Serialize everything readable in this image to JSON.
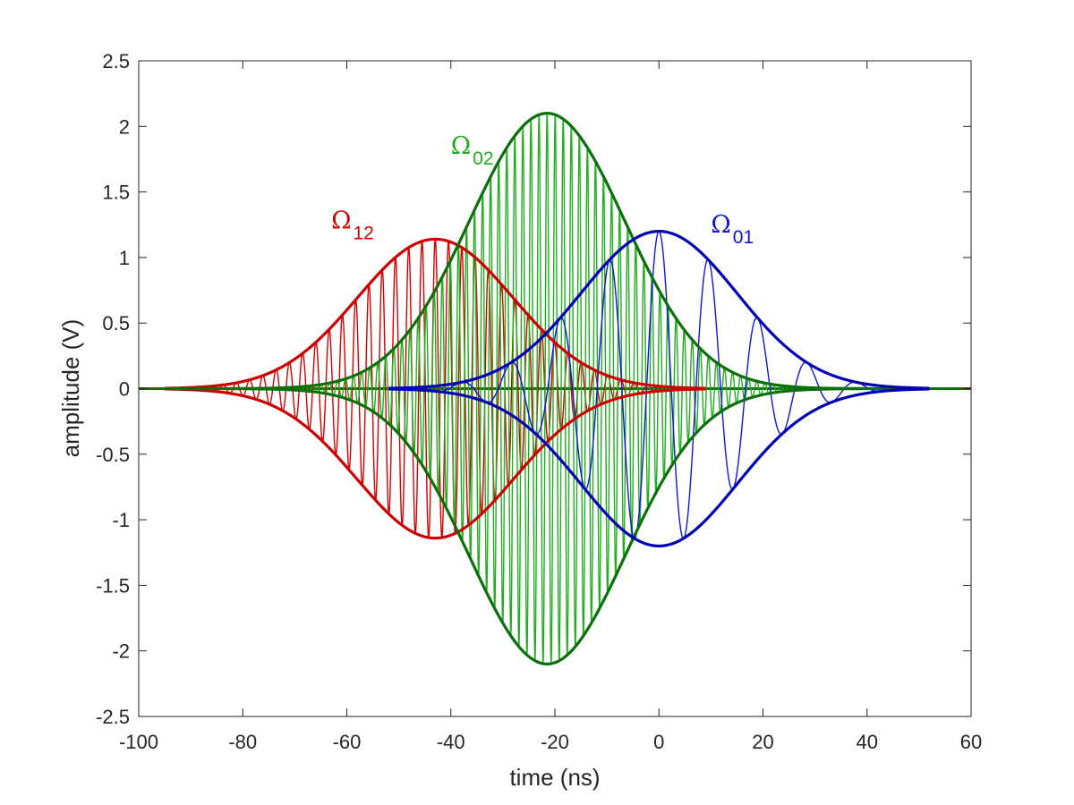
{
  "chart_data": {
    "type": "line",
    "xlabel": "time (ns)",
    "ylabel": "amplitude (V)",
    "xlim": [
      -100,
      60
    ],
    "ylim": [
      -2.5,
      2.5
    ],
    "xticks": [
      -100,
      -80,
      -60,
      -40,
      -20,
      0,
      20,
      40,
      60
    ],
    "xtick_labels": [
      "-100",
      "-80",
      "-60",
      "-40",
      "-20",
      "0",
      "20",
      "40",
      "60"
    ],
    "yticks": [
      2.5,
      2,
      1.5,
      1,
      0.5,
      0,
      -0.5,
      -1,
      -1.5,
      -2,
      -2.5
    ],
    "ytick_labels": [
      "2.5",
      "2",
      "1.5",
      "1",
      "0.5",
      "0",
      "-0.5",
      "-1",
      "-1.5",
      "-2",
      "-2.5"
    ],
    "grid": false,
    "series": [
      {
        "name": "Ω12",
        "symbol": "Ω",
        "subscript": "12",
        "color": "#d40000",
        "envelope_color": "#cc0000",
        "peak_amplitude": 1.14,
        "center": -43,
        "sigma": 15,
        "t_range": [
          -95,
          9
        ],
        "carrier_period": 2.55
      },
      {
        "name": "Ω02",
        "symbol": "Ω",
        "subscript": "02",
        "color": "#1fae1f",
        "envelope_color": "#0a700a",
        "peak_amplitude": 2.1,
        "center": -21.5,
        "sigma": 15,
        "t_range": [
          -95,
          52
        ],
        "carrier_period": 1.55
      },
      {
        "name": "Ω01",
        "symbol": "Ω",
        "subscript": "01",
        "color": "#1414d6",
        "envelope_color": "#0000b4",
        "peak_amplitude": 1.2,
        "center": 0,
        "sigma": 15,
        "t_range": [
          -52,
          52
        ],
        "carrier_period": 9.5
      }
    ],
    "annotations": [
      {
        "series": "Ω12",
        "symbol": "Ω",
        "subscript": "12",
        "x": -63,
        "y": 1.22,
        "color": "#d40000"
      },
      {
        "series": "Ω02",
        "symbol": "Ω",
        "subscript": "02",
        "x": -40,
        "y": 1.79,
        "color": "#1fae1f"
      },
      {
        "series": "Ω01",
        "symbol": "Ω",
        "subscript": "01",
        "x": 10,
        "y": 1.19,
        "color": "#1414d6"
      }
    ]
  }
}
